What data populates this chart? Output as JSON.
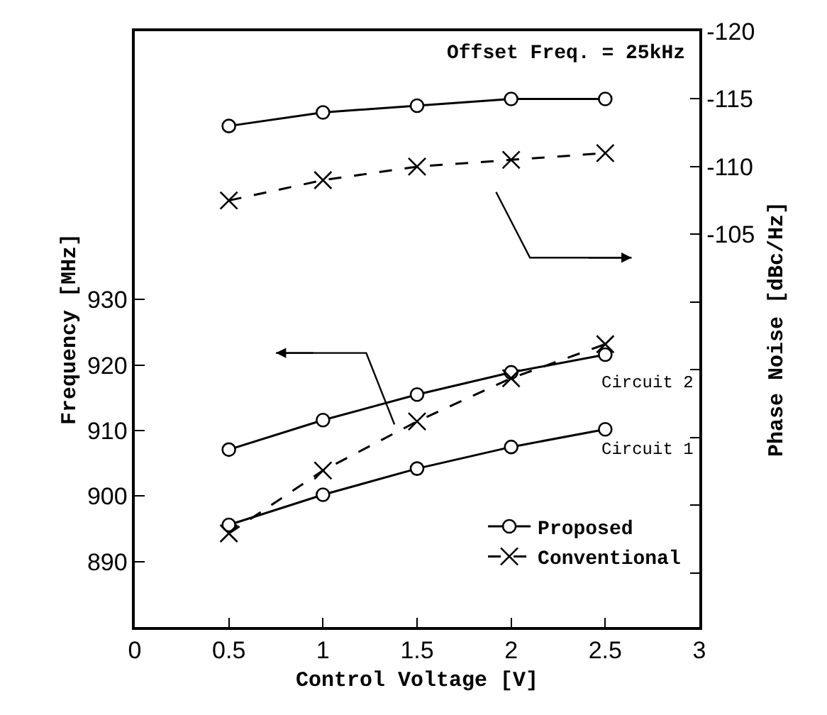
{
  "chart_data": {
    "type": "line",
    "xlabel": "Control Voltage [V]",
    "ylabel": "Frequency [MHz]",
    "y2label": "Phase Noise [dBc/Hz]",
    "x": [
      0.5,
      1,
      1.5,
      2,
      2.5
    ],
    "xlim": [
      0,
      3
    ],
    "xticks": [
      0,
      0.5,
      1,
      1.5,
      2,
      2.5,
      3
    ],
    "ylim": [
      880,
      971
    ],
    "yticks": [
      890,
      900,
      910,
      920,
      930
    ],
    "y2lim": [
      -76,
      -120
    ],
    "y2ticks": [
      -120,
      -115,
      -110,
      -105,
      {
        "value": -100,
        "label": null
      },
      {
        "value": -95,
        "label": null
      },
      {
        "value": -90,
        "label": null
      },
      {
        "value": -85,
        "label": null
      },
      {
        "value": -80,
        "label": null
      }
    ],
    "legend": "bottom right",
    "series": [
      {
        "name": "Proposed",
        "color": "#000000",
        "axis": "y2",
        "marker": "circle",
        "line_style": "solid",
        "values": [
          -113.0,
          -114.0,
          -114.5,
          -115.0,
          -115.0
        ]
      },
      {
        "name": "Conventional",
        "color": "#000000",
        "axis": "y2",
        "marker": "cross",
        "line_style": "dashed",
        "values": [
          -107.5,
          -109.0,
          -110.0,
          -110.5,
          -111.0
        ]
      },
      {
        "color": "#000000",
        "marker": "circle",
        "line_style": "solid",
        "values": [
          907.1,
          911.6,
          915.5,
          918.9,
          921.6
        ]
      },
      {
        "color": "#000000",
        "marker": "circle",
        "line_style": "solid",
        "values": [
          895.6,
          900.2,
          904.2,
          907.5,
          910.2
        ]
      },
      {
        "color": "#000000",
        "marker": "cross",
        "line_style": "dashed",
        "values": [
          894.3,
          903.9,
          911.4,
          918.0,
          923.2
        ]
      }
    ],
    "annotations": [
      "Offset Freq. = 25kHz",
      "Circuit 2",
      "Circuit 1"
    ]
  }
}
